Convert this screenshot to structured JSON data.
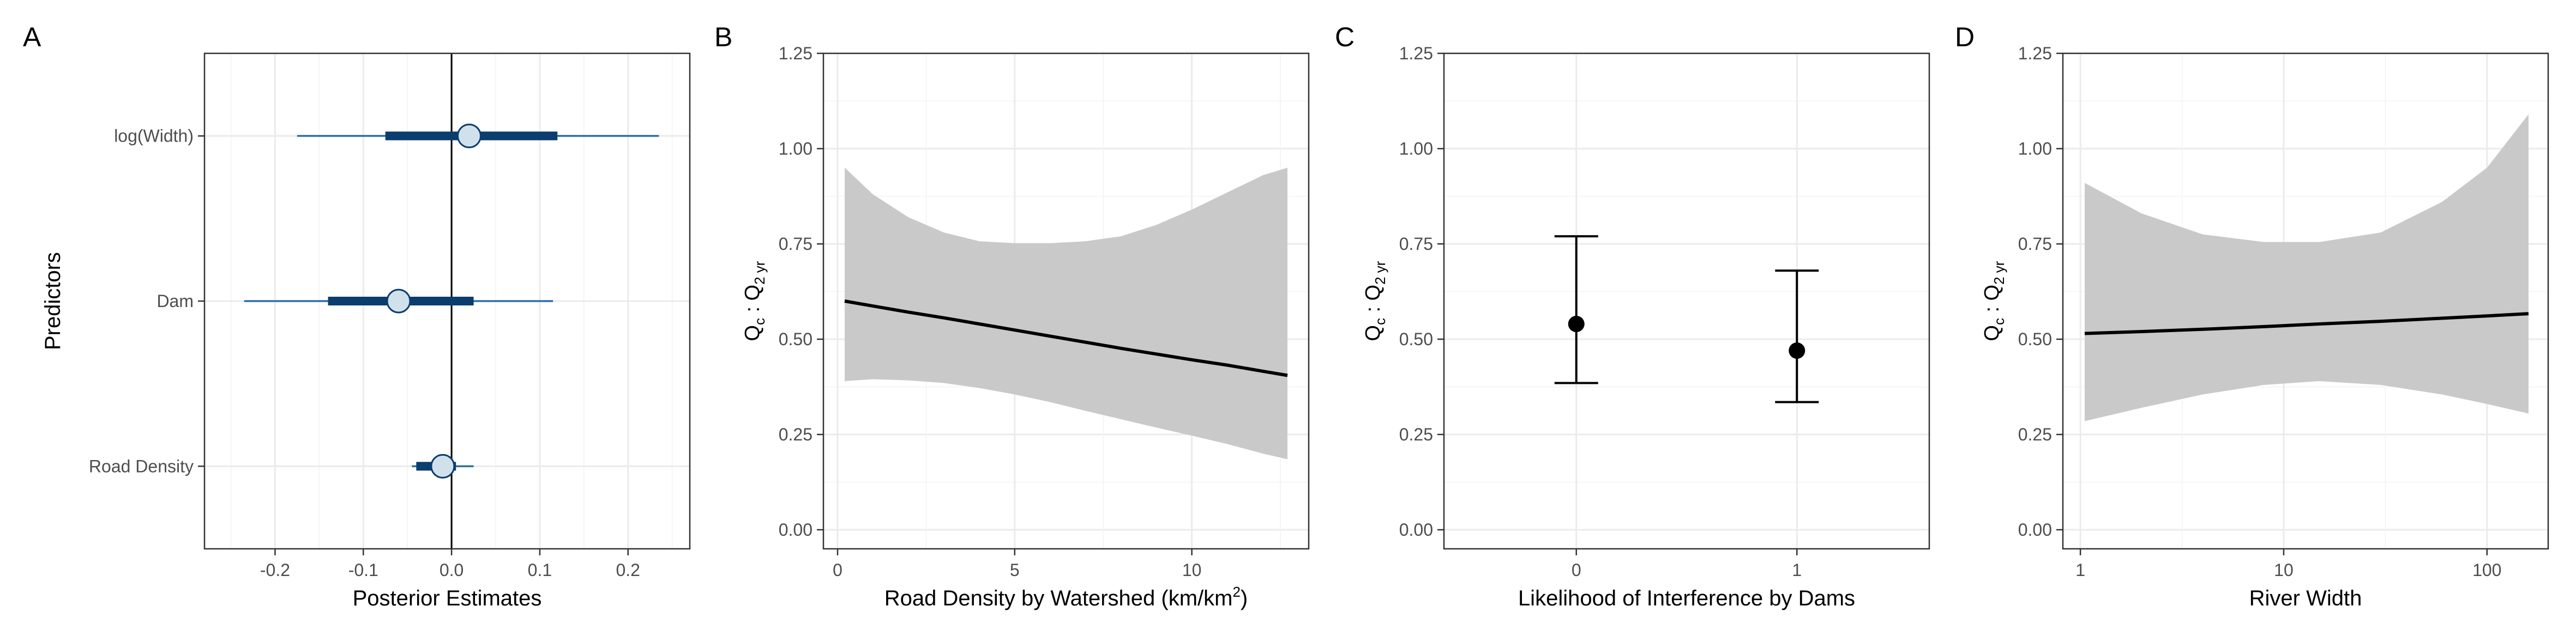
{
  "chart_data": [
    {
      "panel": "A",
      "type": "interval",
      "xlabel": "Posterior Estimates",
      "ylabel": "Predictors",
      "xlim": [
        -0.28,
        0.27
      ],
      "xticks": [
        -0.2,
        -0.1,
        0.0,
        0.1,
        0.2
      ],
      "xtick_labels": [
        "-0.2",
        "-0.1",
        "0.0",
        "0.1",
        "0.2"
      ],
      "reference_line_x": 0,
      "categories": [
        "log(Width)",
        "Dam",
        "Road Density"
      ],
      "estimates": [
        {
          "predictor": "log(Width)",
          "median": 0.02,
          "inner": [
            -0.075,
            0.12
          ],
          "outer": [
            -0.175,
            0.235
          ]
        },
        {
          "predictor": "Dam",
          "median": -0.06,
          "inner": [
            -0.14,
            0.025
          ],
          "outer": [
            -0.235,
            0.115
          ]
        },
        {
          "predictor": "Road Density",
          "median": -0.01,
          "inner": [
            -0.04,
            0.005
          ],
          "outer": [
            -0.045,
            0.025
          ]
        }
      ],
      "colors": {
        "outer": "#2e6fa7",
        "inner": "#0b3d6e",
        "point_fill": "#d1e1ec",
        "point_edge": "#0b3d6e"
      }
    },
    {
      "panel": "B",
      "type": "line",
      "xlabel": "Road Density by Watershed (km/km",
      "xlabel_sup": "2",
      "xlabel_end": ")",
      "ylabel_main": "Q",
      "ylabel_sub1": "c",
      "ylabel_sep": " : Q",
      "ylabel_sub2": "2 yr",
      "xlim": [
        -0.4,
        13.3
      ],
      "ylim": [
        -0.05,
        1.25
      ],
      "xticks": [
        0,
        5,
        10
      ],
      "xtick_labels": [
        "0",
        "5",
        "10"
      ],
      "yticks": [
        0,
        0.25,
        0.5,
        0.75,
        1.0,
        1.25
      ],
      "ytick_labels": [
        "0.00",
        "0.25",
        "0.50",
        "0.75",
        "1.00",
        "1.25"
      ],
      "x": [
        0.2,
        1,
        2,
        3,
        4,
        5,
        6,
        7,
        8,
        9,
        10,
        11,
        12,
        12.7
      ],
      "y": [
        0.6,
        0.587,
        0.571,
        0.556,
        0.54,
        0.524,
        0.508,
        0.492,
        0.476,
        0.461,
        0.446,
        0.432,
        0.416,
        0.405
      ],
      "lower": [
        0.39,
        0.395,
        0.392,
        0.385,
        0.372,
        0.355,
        0.335,
        0.312,
        0.29,
        0.268,
        0.247,
        0.225,
        0.2,
        0.185
      ],
      "upper": [
        0.95,
        0.88,
        0.82,
        0.78,
        0.757,
        0.752,
        0.752,
        0.757,
        0.77,
        0.8,
        0.84,
        0.885,
        0.93,
        0.95
      ],
      "colors": {
        "line": "#000000",
        "band": "#c9c9c9"
      }
    },
    {
      "panel": "C",
      "type": "errorbar",
      "xlabel": "Likelihood of Interference by Dams",
      "ylabel_main": "Q",
      "ylabel_sub1": "c",
      "ylabel_sep": " : Q",
      "ylabel_sub2": "2 yr",
      "xlim": [
        -0.6,
        1.6
      ],
      "ylim": [
        -0.05,
        1.25
      ],
      "xticks": [
        0,
        1
      ],
      "xtick_labels": [
        "0",
        "1"
      ],
      "yticks": [
        0,
        0.25,
        0.5,
        0.75,
        1.0,
        1.25
      ],
      "ytick_labels": [
        "0.00",
        "0.25",
        "0.50",
        "0.75",
        "1.00",
        "1.25"
      ],
      "x": [
        0,
        1
      ],
      "y": [
        0.54,
        0.47
      ],
      "lower": [
        0.385,
        0.335
      ],
      "upper": [
        0.77,
        0.68
      ],
      "colors": {
        "point": "#000000"
      }
    },
    {
      "panel": "D",
      "type": "line",
      "xlabel": "River Width",
      "ylabel_main": "Q",
      "ylabel_sub1": "c",
      "ylabel_sep": " : Q",
      "ylabel_sub2": "2 yr",
      "xscale": "log",
      "xlim": [
        0.82,
        200
      ],
      "ylim": [
        -0.05,
        1.25
      ],
      "xticks": [
        1,
        10,
        100
      ],
      "xtick_labels": [
        "1",
        "10",
        "100"
      ],
      "yticks": [
        0,
        0.25,
        0.5,
        0.75,
        1.0,
        1.25
      ],
      "ytick_labels": [
        "0.00",
        "0.25",
        "0.50",
        "0.75",
        "1.00",
        "1.25"
      ],
      "x": [
        1.05,
        2,
        4,
        8,
        15,
        30,
        60,
        100,
        160
      ],
      "y": [
        0.515,
        0.52,
        0.526,
        0.533,
        0.54,
        0.547,
        0.555,
        0.561,
        0.567
      ],
      "lower": [
        0.285,
        0.32,
        0.355,
        0.38,
        0.39,
        0.38,
        0.355,
        0.33,
        0.305
      ],
      "upper": [
        0.91,
        0.83,
        0.775,
        0.755,
        0.755,
        0.78,
        0.86,
        0.95,
        1.09
      ],
      "colors": {
        "line": "#000000",
        "band": "#c9c9c9"
      }
    }
  ]
}
